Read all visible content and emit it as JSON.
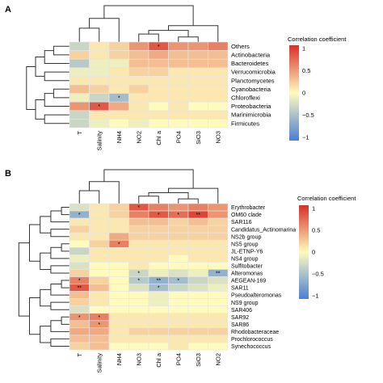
{
  "chart_data": [
    {
      "type": "heatmap",
      "panel_label": "A",
      "legend_title": "Correlation coefficient",
      "legend_ticks": [
        "1",
        "0.5",
        "0",
        "−0.5",
        "−1"
      ],
      "colorscale": [
        "#4a7fd6",
        "#fffbbf",
        "#d73027"
      ],
      "vlim": [
        -1,
        1
      ],
      "columns": [
        "T",
        "Salinity",
        "NH4",
        "NO2",
        "Chl a",
        "PO4",
        "SiO3",
        "NO3"
      ],
      "rows": [
        "Others",
        "Actinobacteria",
        "Bacteroidetes",
        "Verrucomicrobia",
        "Planctomycetes",
        "Cyanobacteria",
        "Chloroflexi",
        "Proteobacteria",
        "Marinimicrobia",
        "Firmicutes"
      ],
      "values": [
        [
          -0.3,
          0.1,
          0.2,
          0.5,
          0.8,
          0.5,
          0.5,
          0.6
        ],
        [
          0.2,
          0.1,
          0.2,
          0.3,
          0.4,
          0.3,
          0.3,
          0.3
        ],
        [
          -0.4,
          -0.1,
          -0.1,
          0.3,
          0.3,
          0.3,
          0.3,
          0.3
        ],
        [
          -0.1,
          -0.1,
          0.1,
          0.2,
          0.2,
          0.1,
          0.1,
          0.1
        ],
        [
          0.1,
          0.1,
          0.1,
          0.1,
          0.1,
          0.1,
          0.1,
          0.1
        ],
        [
          0.3,
          0.2,
          0.1,
          0.2,
          0.1,
          0.1,
          0.1,
          0.1
        ],
        [
          -0.1,
          -0.3,
          -0.5,
          0.1,
          0.1,
          0.1,
          0.1,
          0.1
        ],
        [
          0.5,
          0.8,
          0.4,
          0.1,
          0.0,
          0.1,
          0.0,
          0.0
        ],
        [
          -0.3,
          0.1,
          0.1,
          0.1,
          0.1,
          0.1,
          0.1,
          0.1
        ],
        [
          -0.3,
          -0.1,
          0.0,
          -0.1,
          0.0,
          0.0,
          0.0,
          0.0
        ]
      ],
      "significance": [
        [
          "",
          "",
          "",
          "",
          "*",
          "",
          "",
          ""
        ],
        [
          "",
          "",
          "",
          "",
          "",
          "",
          "",
          ""
        ],
        [
          "",
          "",
          "",
          "",
          "",
          "",
          "",
          ""
        ],
        [
          "",
          "",
          "",
          "",
          "",
          "",
          "",
          ""
        ],
        [
          "",
          "",
          "",
          "",
          "",
          "",
          "",
          ""
        ],
        [
          "",
          "",
          "",
          "",
          "",
          "",
          "",
          ""
        ],
        [
          "",
          "",
          "*",
          "",
          "",
          "",
          "",
          ""
        ],
        [
          "",
          "*",
          "",
          "",
          "",
          "",
          "",
          ""
        ],
        [
          "",
          "",
          "",
          "",
          "",
          "",
          "",
          ""
        ],
        [
          "",
          "",
          "",
          "",
          "",
          "",
          "",
          ""
        ]
      ],
      "row_dendrogram": "left",
      "col_dendrogram": "top"
    },
    {
      "type": "heatmap",
      "panel_label": "B",
      "legend_title": "Correlation coefficient",
      "legend_ticks": [
        "1",
        "0.5",
        "0",
        "−0.5",
        "−1"
      ],
      "colorscale": [
        "#4a7fd6",
        "#fffbbf",
        "#d73027"
      ],
      "vlim": [
        -1,
        1
      ],
      "columns": [
        "T",
        "Salinity",
        "NH4",
        "NO3",
        "Chl a",
        "PO4",
        "SiO3",
        "NO2"
      ],
      "rows": [
        "Erythrobacter",
        "OM60 clade",
        "SAR116",
        "Candidatus_Actinomarina",
        "NS2b group",
        "NS5 group",
        "JL-ETNP-Y6",
        "NS4 group",
        "Sulfitobacter",
        "Alteromonas",
        "AEGEAN-169",
        "SAR11",
        "Pseudoalteromonas",
        "NS9 group",
        "SAR406",
        "SAR92",
        "SAR86",
        "Rhodobacteraceae",
        "Prochlorococcus",
        "Synechococcus"
      ],
      "values": [
        [
          -0.2,
          0.1,
          0.2,
          0.8,
          0.6,
          0.5,
          0.6,
          0.5
        ],
        [
          -0.6,
          0.1,
          0.2,
          0.6,
          0.8,
          0.7,
          0.9,
          0.5
        ],
        [
          0.1,
          0.1,
          0.1,
          0.3,
          0.3,
          0.2,
          0.3,
          0.2
        ],
        [
          0.2,
          0.1,
          0.1,
          0.2,
          0.2,
          0.2,
          0.2,
          0.2
        ],
        [
          0.1,
          0.1,
          0.4,
          0.2,
          0.2,
          0.2,
          0.2,
          0.2
        ],
        [
          0.0,
          0.2,
          0.6,
          0.1,
          0.1,
          0.1,
          0.1,
          0.1
        ],
        [
          -0.3,
          0.1,
          0.1,
          0.1,
          0.1,
          0.1,
          0.1,
          0.1
        ],
        [
          -0.1,
          0.1,
          0.1,
          0.1,
          0.1,
          0.0,
          0.1,
          0.1
        ],
        [
          -0.2,
          0.0,
          0.0,
          0.1,
          0.0,
          0.0,
          0.0,
          0.0
        ],
        [
          0.2,
          0.0,
          0.0,
          -0.3,
          -0.1,
          -0.2,
          -0.1,
          -0.6
        ],
        [
          0.6,
          0.2,
          0.0,
          -0.4,
          -0.6,
          -0.5,
          -0.3,
          -0.2
        ],
        [
          0.8,
          0.3,
          0.0,
          -0.2,
          -0.5,
          -0.3,
          -0.2,
          -0.1
        ],
        [
          0.3,
          0.1,
          0.0,
          0.0,
          -0.1,
          0.0,
          0.0,
          0.0
        ],
        [
          0.2,
          0.1,
          0.0,
          0.0,
          -0.1,
          0.0,
          0.0,
          0.0
        ],
        [
          -0.2,
          0.0,
          0.0,
          0.0,
          0.0,
          0.0,
          0.0,
          0.0
        ],
        [
          0.5,
          0.6,
          0.1,
          0.1,
          0.1,
          0.1,
          0.1,
          0.1
        ],
        [
          0.3,
          0.5,
          0.1,
          0.1,
          0.1,
          0.1,
          0.1,
          0.1
        ],
        [
          0.4,
          0.4,
          0.1,
          0.2,
          0.2,
          0.2,
          0.2,
          0.2
        ],
        [
          0.3,
          0.3,
          0.1,
          0.1,
          0.1,
          0.1,
          0.1,
          0.1
        ],
        [
          0.2,
          0.3,
          0.0,
          0.0,
          0.0,
          0.1,
          0.0,
          0.0
        ]
      ],
      "significance": [
        [
          "",
          "",
          "",
          "*",
          "",
          "",
          "",
          ""
        ],
        [
          "*",
          "",
          "",
          "",
          "*",
          "*",
          "**",
          ""
        ],
        [
          "",
          "",
          "",
          "",
          "",
          "",
          "",
          ""
        ],
        [
          "",
          "",
          "",
          "",
          "",
          "",
          "",
          ""
        ],
        [
          "",
          "",
          "",
          "",
          "",
          "",
          "",
          ""
        ],
        [
          "",
          "",
          "*",
          "",
          "",
          "",
          "",
          ""
        ],
        [
          "",
          "",
          "",
          "",
          "",
          "",
          "",
          ""
        ],
        [
          "",
          "",
          "",
          "",
          "",
          "",
          "",
          ""
        ],
        [
          "",
          "",
          "",
          "",
          "",
          "",
          "",
          ""
        ],
        [
          "",
          "",
          "",
          "*",
          "",
          "",
          "",
          "**"
        ],
        [
          "*",
          "",
          "",
          "*",
          "**",
          "*",
          "",
          ""
        ],
        [
          "**",
          "",
          "",
          "",
          "*",
          "",
          "",
          ""
        ],
        [
          "",
          "",
          "",
          "",
          "",
          "",
          "",
          ""
        ],
        [
          "",
          "",
          "",
          "",
          "",
          "",
          "",
          ""
        ],
        [
          "",
          "",
          "",
          "",
          "",
          "",
          "",
          ""
        ],
        [
          "*",
          "*",
          "",
          "",
          "",
          "",
          "",
          ""
        ],
        [
          "",
          "*",
          "",
          "",
          "",
          "",
          "",
          ""
        ],
        [
          "",
          "",
          "",
          "",
          "",
          "",
          "",
          ""
        ],
        [
          "",
          "",
          "",
          "",
          "",
          "",
          "",
          ""
        ],
        [
          "",
          "",
          "",
          "",
          "",
          "",
          "",
          ""
        ]
      ],
      "row_dendrogram": "left",
      "col_dendrogram": "top"
    }
  ]
}
